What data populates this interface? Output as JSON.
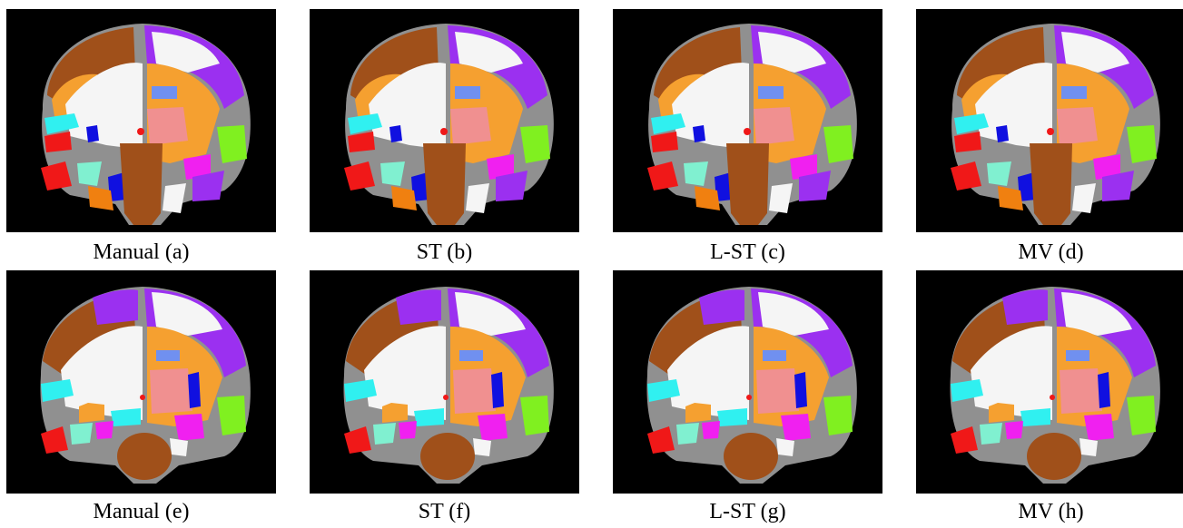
{
  "rows": [
    {
      "panels": [
        {
          "caption": "Manual (a)",
          "image": "coronal-brain-segmentation"
        },
        {
          "caption": "ST (b)",
          "image": "coronal-brain-segmentation"
        },
        {
          "caption": "L-ST (c)",
          "image": "coronal-brain-segmentation"
        },
        {
          "caption": "MV (d)",
          "image": "coronal-brain-segmentation"
        }
      ]
    },
    {
      "panels": [
        {
          "caption": "Manual (e)",
          "image": "coronal-brain-segmentation"
        },
        {
          "caption": "ST (f)",
          "image": "coronal-brain-segmentation"
        },
        {
          "caption": "L-ST (g)",
          "image": "coronal-brain-segmentation"
        },
        {
          "caption": "MV (h)",
          "image": "coronal-brain-segmentation"
        }
      ]
    }
  ],
  "palette": {
    "background": "#000000",
    "white_matter": "#f5f5f5",
    "orange": "#f5a030",
    "brown": "#a0501a",
    "purple": "#9b30f0",
    "gray": "#909090",
    "cyan": "#30f0f0",
    "red": "#f01818",
    "blue": "#1010e0",
    "pink": "#f09090",
    "light_blue": "#7090f0",
    "green": "#80f020",
    "magenta": "#f020f0",
    "aquamarine": "#80f0d0",
    "dark_orange": "#f08010"
  }
}
